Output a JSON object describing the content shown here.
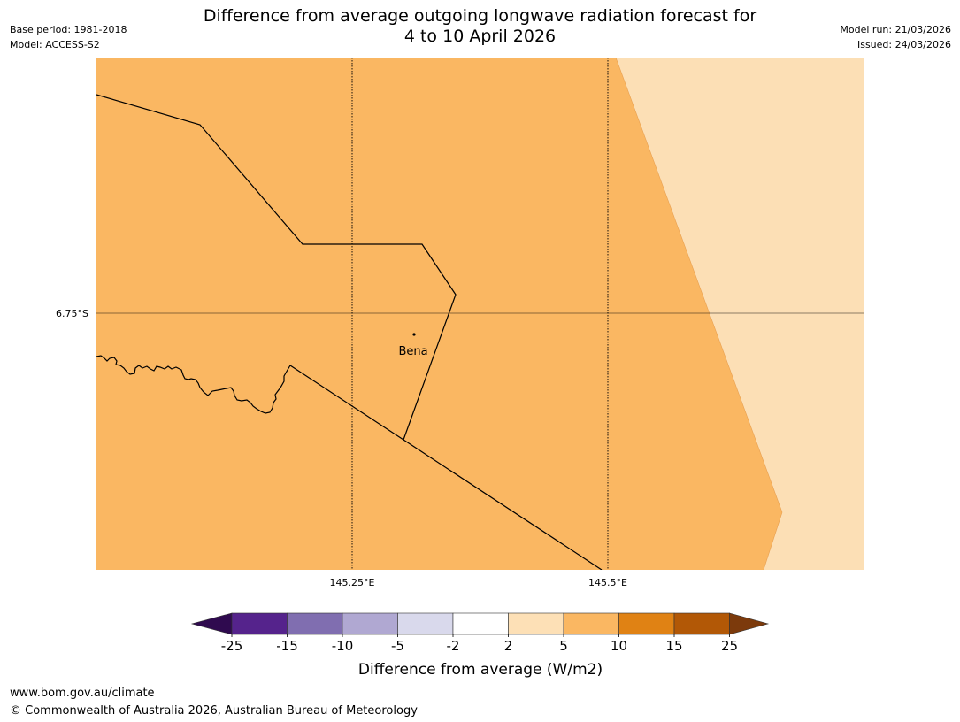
{
  "header": {
    "title_line1": "Difference from average outgoing longwave radiation forecast for",
    "title_line2": "4 to 10 April 2026",
    "base_period": "Base period: 1981-2018",
    "model": "Model: ACCESS-S2",
    "model_run": "Model run: 21/03/2026",
    "issued": "Issued: 24/03/2026"
  },
  "map": {
    "lat_label": "6.75°S",
    "lon_labels": [
      "145.25°E",
      "145.5°E"
    ],
    "place_label": "Bena",
    "colors": {
      "main_fill": "#fab762",
      "light_fill": "#fcdfb5",
      "border": "#000000",
      "grid": "#000000"
    }
  },
  "legend": {
    "title": "Difference from average (W/m2)",
    "tick_labels": [
      "-25",
      "-15",
      "-10",
      "-5",
      "-2",
      "2",
      "5",
      "10",
      "15",
      "25"
    ],
    "under_color": "#2f0a4f",
    "over_color": "#7c3a0c",
    "bins": [
      "#55238c",
      "#806eb0",
      "#b0a8d2",
      "#d9d9ec",
      "#ffffff",
      "#fde0b6",
      "#fab762",
      "#e08214",
      "#b25806"
    ]
  },
  "footer": {
    "url": "www.bom.gov.au/climate",
    "copyright": "© Commonwealth of Australia 2026, Australian Bureau of Meteorology"
  }
}
